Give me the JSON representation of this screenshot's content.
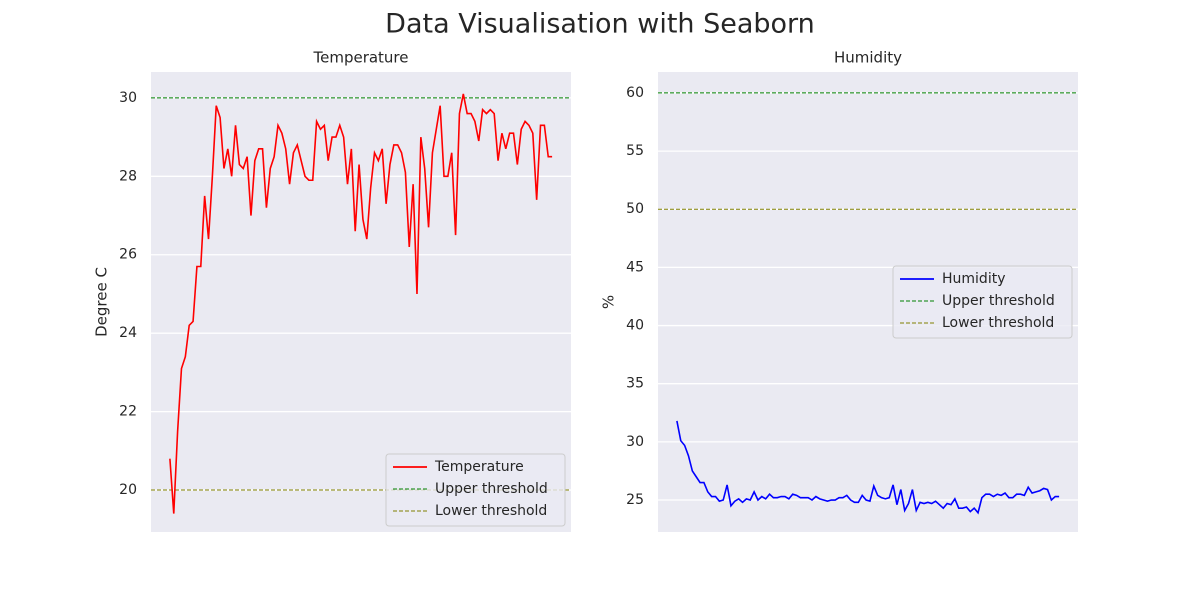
{
  "title": "Data Visualisation with Seaborn",
  "chart_data": [
    {
      "type": "line",
      "title": "Temperature",
      "ylabel": "Degree C",
      "ylim": [
        18.93,
        30.66
      ],
      "yticks": [
        20,
        22,
        24,
        26,
        28,
        30
      ],
      "grid": true,
      "legend": "lower right",
      "series": [
        {
          "name": "Temperature",
          "color": "red",
          "values": [
            20.8,
            19.4,
            21.5,
            23.1,
            23.4,
            24.2,
            24.3,
            25.7,
            25.7,
            27.5,
            26.4,
            28.0,
            29.8,
            29.5,
            28.2,
            28.7,
            28.0,
            29.3,
            28.3,
            28.2,
            28.5,
            27.0,
            28.4,
            28.7,
            28.7,
            27.2,
            28.2,
            28.5,
            29.3,
            29.1,
            28.7,
            27.8,
            28.6,
            28.8,
            28.4,
            28.0,
            27.9,
            27.9,
            29.4,
            29.2,
            29.3,
            28.4,
            29.0,
            29.0,
            29.3,
            29.0,
            27.8,
            28.7,
            26.6,
            28.3,
            26.9,
            26.4,
            27.7,
            28.6,
            28.4,
            28.7,
            27.3,
            28.3,
            28.8,
            28.8,
            28.6,
            28.1,
            26.2,
            27.8,
            25.0,
            29.0,
            28.2,
            26.7,
            28.6,
            29.2,
            29.8,
            28.0,
            28.0,
            28.6,
            26.5,
            29.6,
            30.1,
            29.6,
            29.6,
            29.4,
            28.9,
            29.7,
            29.6,
            29.7,
            29.6,
            28.4,
            29.1,
            28.7,
            29.1,
            29.1,
            28.3,
            29.2,
            29.4,
            29.3,
            29.1,
            27.4,
            29.3,
            29.3,
            28.5,
            28.5
          ]
        }
      ],
      "hlines": [
        {
          "name": "Upper threshold",
          "value": 30,
          "color": "green"
        },
        {
          "name": "Lower threshold",
          "value": 20,
          "color": "olive"
        }
      ]
    },
    {
      "type": "line",
      "title": "Humidity",
      "ylabel": "%",
      "ylim": [
        22.25,
        61.8
      ],
      "yticks": [
        25,
        30,
        35,
        40,
        45,
        50,
        55,
        60
      ],
      "grid": true,
      "legend": "center right",
      "series": [
        {
          "name": "Humidity",
          "color": "blue",
          "values": [
            31.8,
            30.1,
            29.7,
            28.8,
            27.5,
            27.0,
            26.5,
            26.5,
            25.7,
            25.3,
            25.3,
            24.9,
            25.0,
            26.3,
            24.5,
            24.9,
            25.1,
            24.8,
            25.1,
            25.0,
            25.7,
            25.0,
            25.3,
            25.1,
            25.5,
            25.2,
            25.2,
            25.3,
            25.3,
            25.1,
            25.5,
            25.4,
            25.2,
            25.2,
            25.2,
            25.0,
            25.3,
            25.1,
            25.0,
            24.9,
            25.0,
            25.0,
            25.2,
            25.2,
            25.4,
            25.0,
            24.8,
            24.8,
            25.4,
            25.0,
            24.9,
            26.2,
            25.4,
            25.2,
            25.1,
            25.2,
            26.3,
            24.6,
            25.9,
            24.1,
            24.7,
            25.9,
            24.1,
            24.8,
            24.7,
            24.8,
            24.7,
            24.9,
            24.6,
            24.3,
            24.7,
            24.6,
            25.1,
            24.3,
            24.3,
            24.4,
            24.0,
            24.3,
            23.9,
            25.2,
            25.5,
            25.5,
            25.3,
            25.5,
            25.4,
            25.6,
            25.2,
            25.2,
            25.5,
            25.5,
            25.4,
            26.1,
            25.6,
            25.7,
            25.8,
            26.0,
            25.9,
            25.0,
            25.3,
            25.3
          ]
        }
      ],
      "hlines": [
        {
          "name": "Upper threshold",
          "value": 60,
          "color": "green"
        },
        {
          "name": "Lower threshold",
          "value": 50,
          "color": "olive"
        }
      ]
    }
  ]
}
